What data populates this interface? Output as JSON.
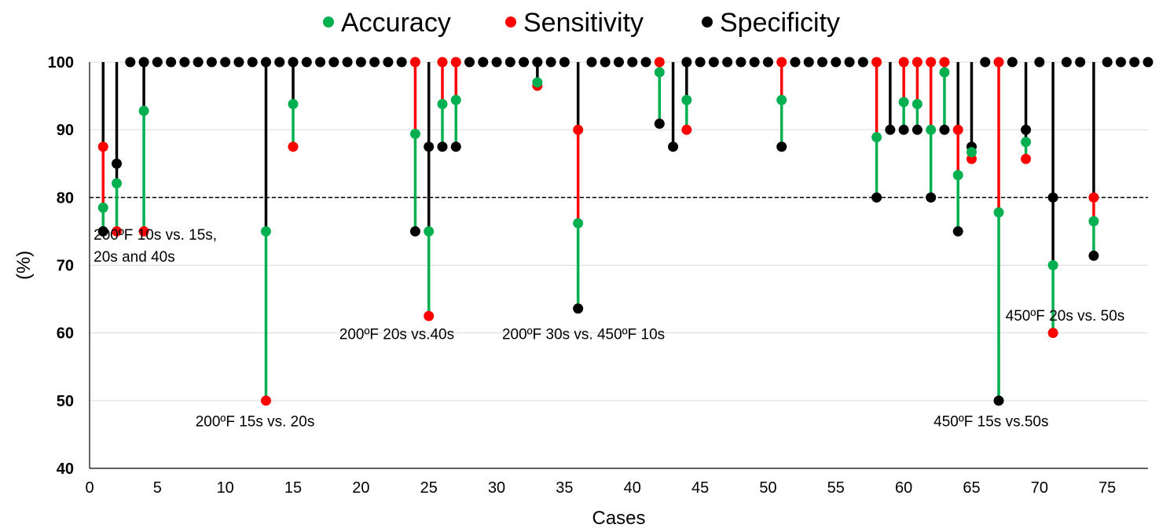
{
  "chart_data": {
    "type": "scatter",
    "xlabel": "Cases",
    "ylabel": "(%)",
    "xlim": [
      0,
      78
    ],
    "ylim": [
      40,
      100
    ],
    "xticks": [
      0,
      5,
      10,
      15,
      20,
      25,
      30,
      35,
      40,
      45,
      50,
      55,
      60,
      65,
      70,
      75
    ],
    "yticks": [
      40,
      50,
      60,
      70,
      80,
      90,
      100
    ],
    "reference_line": 80,
    "grid": "horizontal",
    "legend_position": "top",
    "series": [
      {
        "name": "Accuracy",
        "color": "#00b050",
        "values": [
          [
            1,
            78.5
          ],
          [
            2,
            82.1
          ],
          [
            4,
            92.8
          ],
          [
            13,
            75
          ],
          [
            15,
            93.8
          ],
          [
            24,
            89.4
          ],
          [
            25,
            75
          ],
          [
            26,
            93.8
          ],
          [
            27,
            94.4
          ],
          [
            33,
            97
          ],
          [
            36,
            76.2
          ],
          [
            42,
            98.5
          ],
          [
            44,
            94.4
          ],
          [
            51,
            94.4
          ],
          [
            58,
            88.9
          ],
          [
            60,
            94.1
          ],
          [
            61,
            93.8
          ],
          [
            62,
            90
          ],
          [
            63,
            98.5
          ],
          [
            64,
            83.3
          ],
          [
            65,
            86.7
          ],
          [
            67,
            77.8
          ],
          [
            69,
            88.2
          ],
          [
            71,
            70
          ],
          [
            74,
            76.5
          ]
        ]
      },
      {
        "name": "Sensitivity",
        "color": "#ff0000",
        "values": [
          [
            1,
            87.5
          ],
          [
            2,
            75
          ],
          [
            4,
            75
          ],
          [
            13,
            50
          ],
          [
            15,
            87.5
          ],
          [
            24,
            100
          ],
          [
            25,
            62.5
          ],
          [
            26,
            100
          ],
          [
            27,
            100
          ],
          [
            33,
            96.5
          ],
          [
            36,
            90
          ],
          [
            42,
            100
          ],
          [
            44,
            90
          ],
          [
            51,
            100
          ],
          [
            58,
            100
          ],
          [
            60,
            100
          ],
          [
            61,
            100
          ],
          [
            62,
            100
          ],
          [
            63,
            100
          ],
          [
            64,
            90
          ],
          [
            65,
            85.7
          ],
          [
            67,
            100
          ],
          [
            69,
            85.7
          ],
          [
            71,
            60
          ],
          [
            74,
            80
          ]
        ]
      },
      {
        "name": "Specificity",
        "color": "#000000",
        "values": [
          [
            1,
            75
          ],
          [
            2,
            85
          ],
          [
            3,
            100
          ],
          [
            4,
            100
          ],
          [
            5,
            100
          ],
          [
            6,
            100
          ],
          [
            7,
            100
          ],
          [
            8,
            100
          ],
          [
            9,
            100
          ],
          [
            10,
            100
          ],
          [
            11,
            100
          ],
          [
            12,
            100
          ],
          [
            13,
            100
          ],
          [
            14,
            100
          ],
          [
            15,
            100
          ],
          [
            16,
            100
          ],
          [
            17,
            100
          ],
          [
            18,
            100
          ],
          [
            19,
            100
          ],
          [
            20,
            100
          ],
          [
            21,
            100
          ],
          [
            22,
            100
          ],
          [
            23,
            100
          ],
          [
            24,
            75
          ],
          [
            25,
            87.5
          ],
          [
            26,
            87.5
          ],
          [
            27,
            87.5
          ],
          [
            28,
            100
          ],
          [
            29,
            100
          ],
          [
            30,
            100
          ],
          [
            31,
            100
          ],
          [
            32,
            100
          ],
          [
            33,
            100
          ],
          [
            34,
            100
          ],
          [
            35,
            100
          ],
          [
            36,
            63.6
          ],
          [
            37,
            100
          ],
          [
            38,
            100
          ],
          [
            39,
            100
          ],
          [
            40,
            100
          ],
          [
            41,
            100
          ],
          [
            42,
            90.9
          ],
          [
            43,
            87.5
          ],
          [
            44,
            100
          ],
          [
            45,
            100
          ],
          [
            46,
            100
          ],
          [
            47,
            100
          ],
          [
            48,
            100
          ],
          [
            49,
            100
          ],
          [
            50,
            100
          ],
          [
            51,
            87.5
          ],
          [
            52,
            100
          ],
          [
            53,
            100
          ],
          [
            54,
            100
          ],
          [
            55,
            100
          ],
          [
            56,
            100
          ],
          [
            57,
            100
          ],
          [
            58,
            80
          ],
          [
            59,
            90
          ],
          [
            60,
            90
          ],
          [
            61,
            90
          ],
          [
            62,
            80
          ],
          [
            63,
            90
          ],
          [
            64,
            75
          ],
          [
            65,
            87.5
          ],
          [
            66,
            100
          ],
          [
            67,
            50
          ],
          [
            68,
            100
          ],
          [
            69,
            90
          ],
          [
            70,
            100
          ],
          [
            71,
            80
          ],
          [
            72,
            100
          ],
          [
            73,
            100
          ],
          [
            74,
            71.4
          ],
          [
            75,
            100
          ],
          [
            76,
            100
          ],
          [
            77,
            100
          ],
          [
            78,
            100
          ]
        ]
      }
    ],
    "annotations": [
      {
        "lines": [
          "200ºF 10s vs. 15s,",
          "20s and 40s"
        ],
        "anchor": [
          0.3,
          73.8
        ]
      },
      {
        "lines": [
          "200ºF 15s vs. 20s"
        ],
        "anchor": [
          7.8,
          46.2
        ]
      },
      {
        "lines": [
          "200ºF 20s vs.40s"
        ],
        "anchor": [
          18.4,
          59.1
        ]
      },
      {
        "lines": [
          "200ºF 30s vs. 450ºF 10s"
        ],
        "anchor": [
          30.4,
          59.1
        ]
      },
      {
        "lines": [
          "450ºF 15s vs.50s"
        ],
        "anchor": [
          62.2,
          46.2
        ]
      },
      {
        "lines": [
          "450ºF 20s vs. 50s"
        ],
        "anchor": [
          67.5,
          61.8
        ]
      }
    ]
  }
}
